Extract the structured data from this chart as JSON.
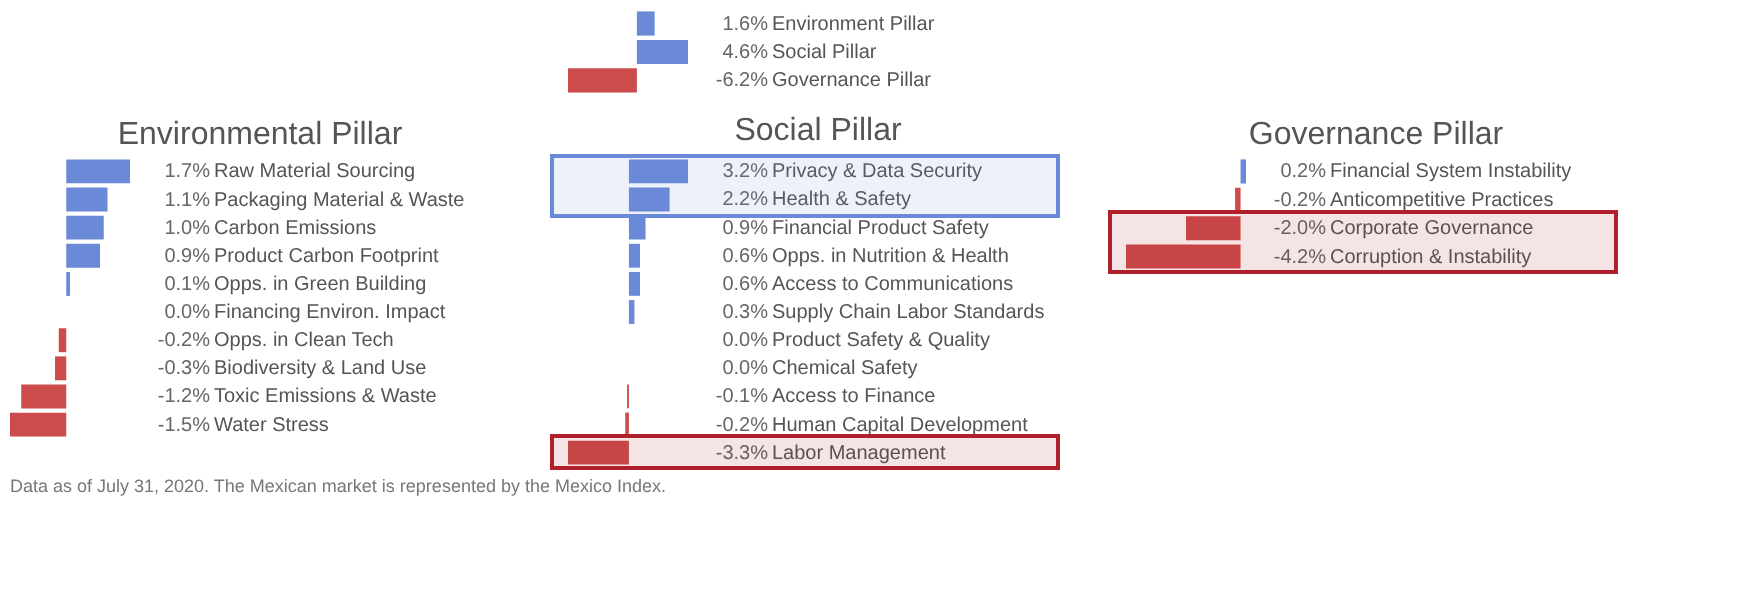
{
  "chart_data": [
    {
      "type": "bar",
      "orientation": "horizontal",
      "categories": [
        "Environment Pillar",
        "Social Pillar",
        "Governance Pillar"
      ],
      "values": [
        1.6,
        4.6,
        -6.2
      ],
      "value_labels": [
        "1.6%",
        "4.6%",
        "-6.2%"
      ],
      "colors": [
        "#6a8ad8",
        "#6a8ad8",
        "#cc4b4b"
      ],
      "annotations": [
        "Data as of July 31, 2020. The Mexican market is represented by the Mexico Index."
      ]
    },
    {
      "type": "bar",
      "orientation": "horizontal",
      "title": "Environmental Pillar",
      "categories": [
        "Raw Material Sourcing",
        "Packaging Material & Waste",
        "Carbon Emissions",
        "Product Carbon Footprint",
        "Opps. in Green Building",
        "Financing Environ. Impact",
        "Opps. in Clean Tech",
        "Biodiversity & Land Use",
        "Toxic Emissions & Waste",
        "Water Stress"
      ],
      "values": [
        1.7,
        1.1,
        1.0,
        0.9,
        0.1,
        0.0,
        -0.2,
        -0.3,
        -1.2,
        -1.5
      ],
      "value_labels": [
        "1.7%",
        "1.1%",
        "1.0%",
        "0.9%",
        "0.1%",
        "0.0%",
        "-0.2%",
        "-0.3%",
        "-1.2%",
        "-1.5%"
      ],
      "colors": [
        "#6a8ad8",
        "#6a8ad8",
        "#6a8ad8",
        "#6a8ad8",
        "#6a8ad8",
        "#6a8ad8",
        "#cc4b4b",
        "#cc4b4b",
        "#cc4b4b",
        "#cc4b4b"
      ]
    },
    {
      "type": "bar",
      "orientation": "horizontal",
      "title": "Social Pillar",
      "categories": [
        "Privacy & Data Security",
        "Health & Safety",
        "Financial Product Safety",
        "Opps. in Nutrition & Health",
        "Access to Communications",
        "Supply Chain Labor Standards",
        "Product Safety & Quality",
        "Chemical Safety",
        "Access to Finance",
        "Human Capital Development",
        "Labor Management"
      ],
      "values": [
        3.2,
        2.2,
        0.9,
        0.6,
        0.6,
        0.3,
        0.0,
        0.0,
        -0.1,
        -0.2,
        -3.3
      ],
      "value_labels": [
        "3.2%",
        "2.2%",
        "0.9%",
        "0.6%",
        "0.6%",
        "0.3%",
        "0.0%",
        "0.0%",
        "-0.1%",
        "-0.2%",
        "-3.3%"
      ],
      "colors": [
        "#6a8ad8",
        "#6a8ad8",
        "#6a8ad8",
        "#6a8ad8",
        "#6a8ad8",
        "#6a8ad8",
        "#6a8ad8",
        "#6a8ad8",
        "#cc4b4b",
        "#cc4b4b",
        "#cc4b4b"
      ],
      "bands": [
        {
          "axis": "y",
          "from": "Privacy & Data Security",
          "to": "Health & Safety",
          "color": "#6a8ad8"
        },
        {
          "axis": "y",
          "from": "Labor Management",
          "to": "Labor Management",
          "color": "#b0202a"
        }
      ]
    },
    {
      "type": "bar",
      "orientation": "horizontal",
      "title": "Governance Pillar",
      "categories": [
        "Financial System Instability",
        "Anticompetitive Practices",
        "Corporate Governance",
        "Corruption & Instability"
      ],
      "values": [
        0.2,
        -0.2,
        -2.0,
        -4.2
      ],
      "value_labels": [
        "0.2%",
        "-0.2%",
        "-2.0%",
        "-4.2%"
      ],
      "colors": [
        "#6a8ad8",
        "#cc4b4b",
        "#cc4b4b",
        "#cc4b4b"
      ],
      "bands": [
        {
          "axis": "y",
          "from": "Corporate Governance",
          "to": "Corruption & Instability",
          "color": "#b0202a"
        }
      ]
    }
  ]
}
